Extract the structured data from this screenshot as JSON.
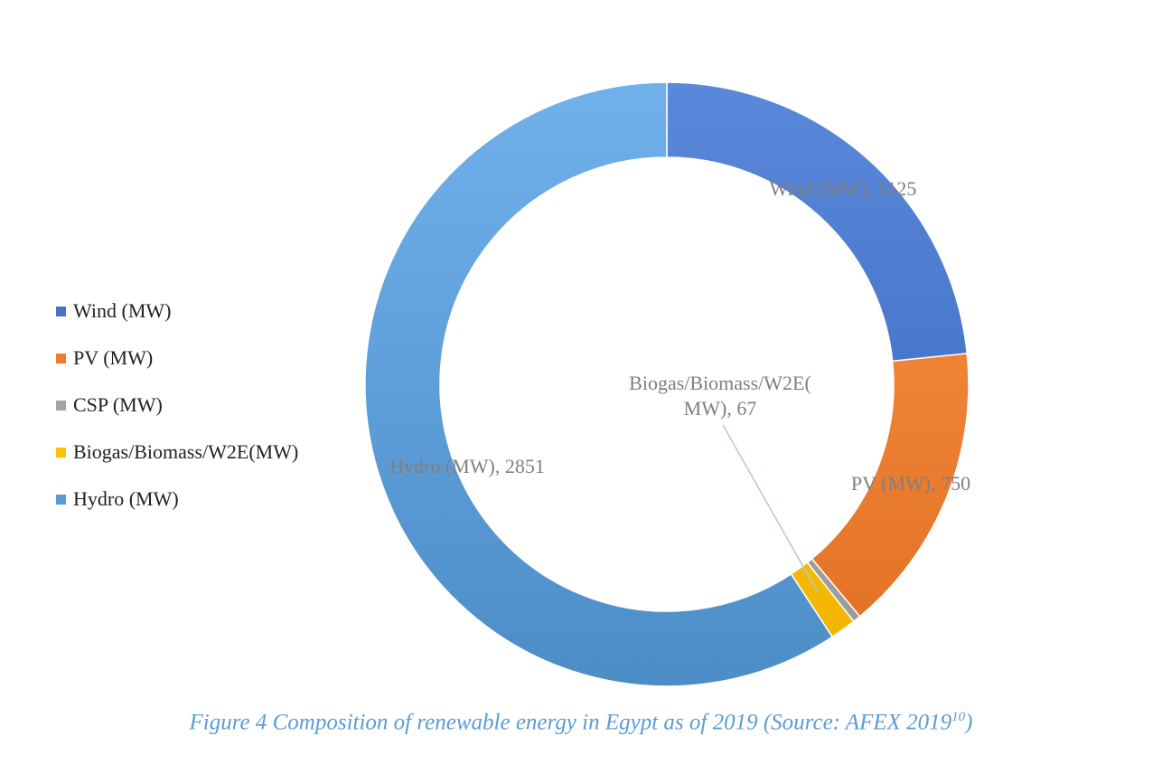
{
  "chart_data": {
    "type": "pie",
    "series": [
      {
        "name": "Wind (MW)",
        "value": 1125,
        "color": "#4472c4",
        "label": "Wind (MW), 1125"
      },
      {
        "name": "PV (MW)",
        "value": 750,
        "color": "#ed7d31",
        "label": "PV (MW), 750"
      },
      {
        "name": "CSP (MW)",
        "value": 20,
        "color": "#a5a5a5",
        "label": ""
      },
      {
        "name": "Biogas/Biomass/W2E(MW)",
        "value": 67,
        "color": "#ffc000",
        "label_line1": "Biogas/Biomass/W2E(",
        "label_line2": "MW), 67"
      },
      {
        "name": "Hydro (MW)",
        "value": 2851,
        "color": "#5b9bd5",
        "label": "Hydro (MW), 2851"
      }
    ],
    "legend_position": "left"
  },
  "legend": {
    "items": [
      {
        "label": "Wind (MW)",
        "color": "#4472c4"
      },
      {
        "label": "PV (MW)",
        "color": "#ed7d31"
      },
      {
        "label": "CSP (MW)",
        "color": "#a5a5a5"
      },
      {
        "label": "Biogas/Biomass/W2E(MW)",
        "color": "#ffc000"
      },
      {
        "label": "Hydro (MW)",
        "color": "#5b9bd5"
      }
    ]
  },
  "caption": {
    "text": "Figure 4 Composition of renewable energy in Egypt as of 2019 (Source: AFEX 2019",
    "superscript": "10",
    "suffix": ")"
  }
}
